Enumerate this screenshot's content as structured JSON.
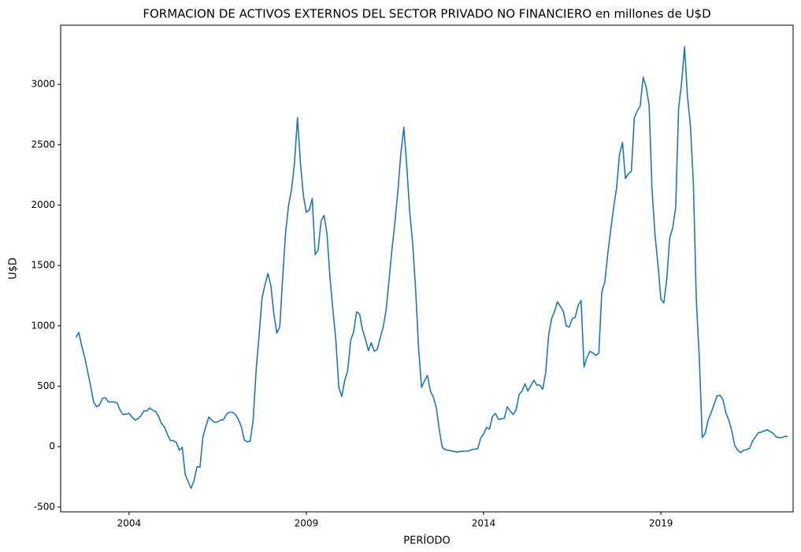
{
  "chart_data": {
    "type": "line",
    "title": "FORMACION DE ACTIVOS EXTERNOS DEL SECTOR PRIVADO NO FINANCIERO en millones de U$D",
    "xlabel": "PERÍODO",
    "ylabel": "U$D",
    "color": "#1f77b4",
    "xlim": [
      2002.07,
      2022.73
    ],
    "xticks": [
      2004,
      2009,
      2014,
      2019
    ],
    "ylim": [
      -540,
      3490
    ],
    "yticks": [
      -500,
      0,
      500,
      1000,
      1500,
      2000,
      2500,
      3000
    ],
    "x": [
      2002.5,
      2002.583,
      2002.667,
      2002.75,
      2002.833,
      2002.917,
      2003,
      2003.083,
      2003.167,
      2003.25,
      2003.333,
      2003.417,
      2003.5,
      2003.583,
      2003.667,
      2003.75,
      2003.833,
      2003.917,
      2004,
      2004.083,
      2004.167,
      2004.25,
      2004.333,
      2004.417,
      2004.5,
      2004.583,
      2004.667,
      2004.75,
      2004.833,
      2004.917,
      2005,
      2005.083,
      2005.167,
      2005.25,
      2005.333,
      2005.417,
      2005.5,
      2005.583,
      2005.667,
      2005.75,
      2005.833,
      2005.917,
      2006,
      2006.083,
      2006.167,
      2006.25,
      2006.333,
      2006.417,
      2006.5,
      2006.583,
      2006.667,
      2006.75,
      2006.833,
      2006.917,
      2007,
      2007.083,
      2007.167,
      2007.25,
      2007.333,
      2007.417,
      2007.5,
      2007.583,
      2007.667,
      2007.75,
      2007.833,
      2007.917,
      2008,
      2008.083,
      2008.167,
      2008.25,
      2008.333,
      2008.417,
      2008.5,
      2008.583,
      2008.667,
      2008.75,
      2008.833,
      2008.917,
      2009,
      2009.083,
      2009.167,
      2009.25,
      2009.333,
      2009.417,
      2009.5,
      2009.583,
      2009.667,
      2009.75,
      2009.833,
      2009.917,
      2010,
      2010.083,
      2010.167,
      2010.25,
      2010.333,
      2010.417,
      2010.5,
      2010.583,
      2010.667,
      2010.75,
      2010.833,
      2010.917,
      2011,
      2011.083,
      2011.167,
      2011.25,
      2011.333,
      2011.417,
      2011.5,
      2011.583,
      2011.667,
      2011.75,
      2011.833,
      2011.917,
      2012,
      2012.083,
      2012.167,
      2012.25,
      2012.333,
      2012.417,
      2012.5,
      2012.583,
      2012.667,
      2012.75,
      2012.833,
      2012.917,
      2013,
      2013.083,
      2013.167,
      2013.25,
      2013.333,
      2013.417,
      2013.5,
      2013.583,
      2013.667,
      2013.75,
      2013.833,
      2013.917,
      2014,
      2014.083,
      2014.167,
      2014.25,
      2014.333,
      2014.417,
      2014.5,
      2014.583,
      2014.667,
      2014.75,
      2014.833,
      2014.917,
      2015,
      2015.083,
      2015.167,
      2015.25,
      2015.333,
      2015.417,
      2015.5,
      2015.583,
      2015.667,
      2015.75,
      2015.833,
      2015.917,
      2016,
      2016.083,
      2016.167,
      2016.25,
      2016.333,
      2016.417,
      2016.5,
      2016.583,
      2016.667,
      2016.75,
      2016.833,
      2016.917,
      2017,
      2017.083,
      2017.167,
      2017.25,
      2017.333,
      2017.417,
      2017.5,
      2017.583,
      2017.667,
      2017.75,
      2017.833,
      2017.917,
      2018,
      2018.083,
      2018.167,
      2018.25,
      2018.333,
      2018.417,
      2018.5,
      2018.583,
      2018.667,
      2018.75,
      2018.833,
      2018.917,
      2019,
      2019.083,
      2019.167,
      2019.25,
      2019.333,
      2019.417,
      2019.5,
      2019.583,
      2019.667,
      2019.75,
      2019.833,
      2019.917,
      2020,
      2020.083,
      2020.167,
      2020.25,
      2020.333,
      2020.417,
      2020.5,
      2020.583,
      2020.667,
      2020.75,
      2020.833,
      2020.917,
      2021,
      2021.083,
      2021.167,
      2021.25,
      2021.333,
      2021.417,
      2021.5,
      2021.583,
      2021.667,
      2021.75,
      2021.833,
      2021.917,
      2022,
      2022.083,
      2022.167,
      2022.25,
      2022.333,
      2022.417,
      2022.5,
      2022.583
    ],
    "values": [
      905,
      945,
      830,
      740,
      620,
      500,
      370,
      330,
      345,
      400,
      405,
      370,
      370,
      370,
      360,
      300,
      265,
      270,
      275,
      245,
      220,
      230,
      255,
      295,
      295,
      320,
      300,
      290,
      250,
      190,
      160,
      100,
      50,
      50,
      35,
      -30,
      -5,
      -230,
      -290,
      -345,
      -280,
      -165,
      -170,
      80,
      170,
      245,
      220,
      200,
      205,
      220,
      225,
      270,
      285,
      285,
      265,
      225,
      165,
      55,
      40,
      45,
      220,
      630,
      920,
      1230,
      1340,
      1435,
      1330,
      1100,
      940,
      990,
      1400,
      1780,
      2000,
      2130,
      2350,
      2725,
      2350,
      2080,
      1940,
      1960,
      2055,
      1590,
      1630,
      1870,
      1915,
      1760,
      1400,
      1130,
      880,
      490,
      415,
      550,
      630,
      880,
      950,
      1115,
      1100,
      970,
      890,
      795,
      860,
      790,
      805,
      900,
      990,
      1130,
      1380,
      1640,
      1860,
      2120,
      2430,
      2645,
      2320,
      1940,
      1680,
      1300,
      810,
      490,
      545,
      590,
      460,
      410,
      320,
      140,
      -5,
      -25,
      -30,
      -35,
      -40,
      -45,
      -40,
      -38,
      -37,
      -35,
      -25,
      -20,
      -18,
      70,
      105,
      160,
      145,
      250,
      275,
      225,
      230,
      235,
      330,
      295,
      265,
      305,
      430,
      460,
      520,
      460,
      505,
      550,
      510,
      510,
      475,
      610,
      920,
      1060,
      1120,
      1200,
      1160,
      1120,
      1000,
      990,
      1060,
      1070,
      1170,
      1210,
      660,
      740,
      790,
      775,
      755,
      775,
      1280,
      1360,
      1590,
      1790,
      1980,
      2140,
      2420,
      2520,
      2220,
      2260,
      2280,
      2720,
      2780,
      2820,
      3060,
      2980,
      2830,
      2130,
      1760,
      1510,
      1220,
      1190,
      1390,
      1730,
      1810,
      1980,
      2800,
      3010,
      3310,
      2900,
      2660,
      2180,
      1210,
      740,
      75,
      110,
      220,
      280,
      350,
      420,
      425,
      390,
      280,
      220,
      130,
      10,
      -30,
      -50,
      -30,
      -25,
      -15,
      45,
      80,
      115,
      120,
      130,
      140,
      125,
      110,
      80,
      75,
      75,
      85,
      85
    ]
  }
}
